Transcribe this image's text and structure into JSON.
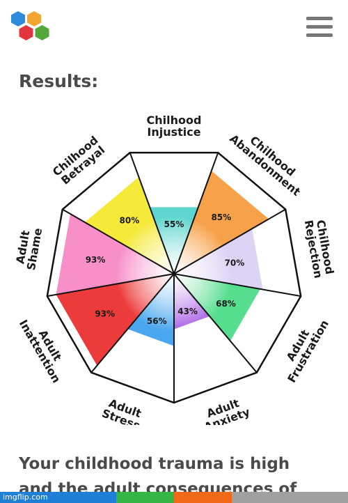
{
  "header": {
    "logo_colors": [
      "#2e8bd8",
      "#f2a531",
      "#e3353c",
      "#53a83c"
    ],
    "menu_icon": "hamburger-icon"
  },
  "page": {
    "results_heading": "Results:",
    "summary_line1": "Your childhood trauma is high",
    "summary_line2": "and the adult consequences of"
  },
  "chart_data": {
    "type": "radial-bar",
    "title": "",
    "categories": [
      {
        "label_lines": [
          "Chilhood",
          "Injustice"
        ],
        "value": 55,
        "label": "55%",
        "color": "#5fd5cf"
      },
      {
        "label_lines": [
          "Chilhood",
          "Abandonment"
        ],
        "value": 85,
        "label": "85%",
        "color": "#f7a24a"
      },
      {
        "label_lines": [
          "Chilhood",
          "Rejection"
        ],
        "value": 70,
        "label": "70%",
        "color": "#ddd3f5"
      },
      {
        "label_lines": [
          "Adult",
          "Frustration"
        ],
        "value": 68,
        "label": "68%",
        "color": "#56de8e"
      },
      {
        "label_lines": [
          "Adult",
          "Anxiety"
        ],
        "value": 43,
        "label": "43%",
        "color": "#a85ce6"
      },
      {
        "label_lines": [
          "Adult",
          "Stress"
        ],
        "value": 56,
        "label": "56%",
        "color": "#4aa6ee"
      },
      {
        "label_lines": [
          "Adult",
          "Inattention"
        ],
        "value": 93,
        "label": "93%",
        "color": "#ec3b3b"
      },
      {
        "label_lines": [
          "Adult",
          "Shame"
        ],
        "value": 93,
        "label": "93%",
        "color": "#f78fc9"
      },
      {
        "label_lines": [
          "Chilhood",
          "Betrayal"
        ],
        "value": 80,
        "label": "80%",
        "color": "#f5ea3a"
      }
    ],
    "range": [
      0,
      100
    ]
  },
  "footer": {
    "watermark": "imgflip.com",
    "bar_colors": [
      "#1e7fd6",
      "#1e7fd6",
      "#34b545",
      "#f06a18",
      "#a0a0a0",
      "#a0a0a0"
    ]
  }
}
